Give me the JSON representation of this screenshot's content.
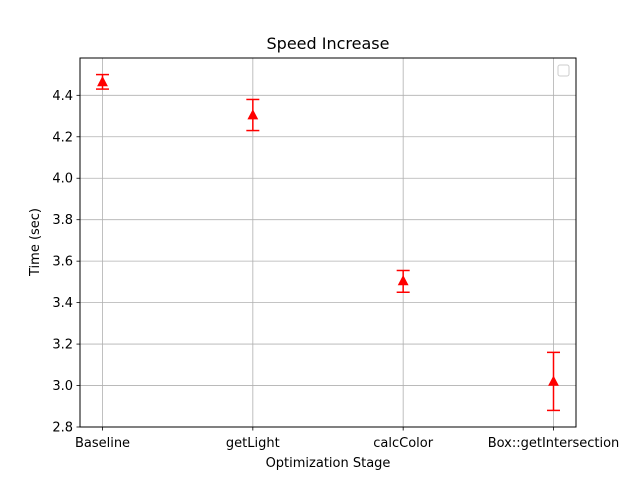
{
  "chart_data": {
    "type": "scatter",
    "title": "Speed Increase",
    "xlabel": "Optimization Stage",
    "ylabel": "Time (sec)",
    "categories": [
      "Baseline",
      "getLight",
      "calcColor",
      "Box::getIntersection"
    ],
    "series": [
      {
        "values": [
          4.465,
          4.305,
          3.505,
          3.02
        ],
        "error_low": [
          4.43,
          4.23,
          3.45,
          2.88
        ],
        "error_high": [
          4.5,
          4.38,
          3.555,
          3.16
        ],
        "marker": "triangle-up",
        "color": "#ff0000"
      }
    ],
    "ylim": [
      2.8,
      4.58
    ],
    "yticks": [
      2.8,
      3.0,
      3.2,
      3.4,
      3.6,
      3.8,
      4.0,
      4.2,
      4.4
    ],
    "grid": true,
    "legend": "top-right"
  }
}
